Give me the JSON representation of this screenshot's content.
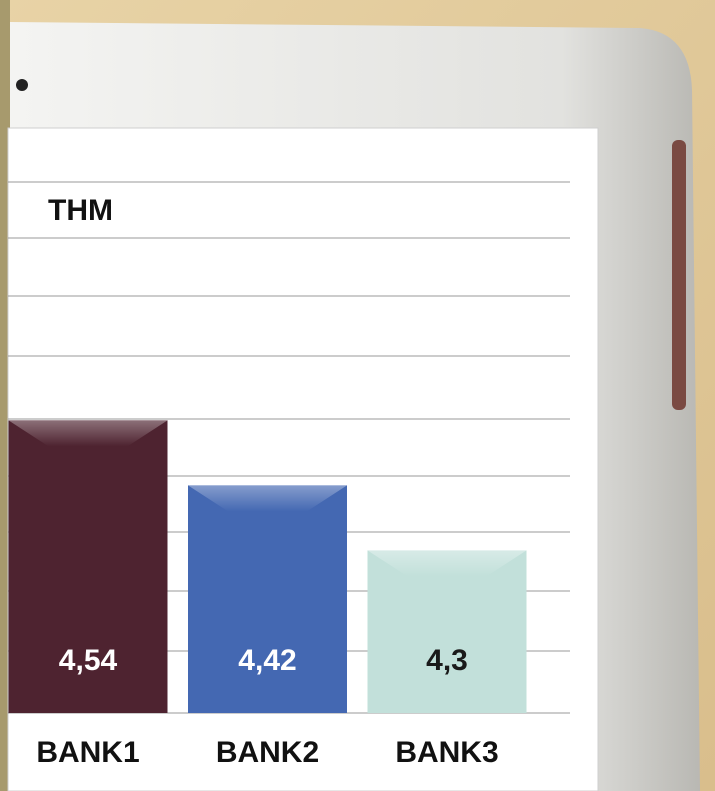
{
  "chart_data": {
    "type": "bar",
    "title": "THM",
    "categories": [
      "BANK1",
      "BANK2",
      "BANK3"
    ],
    "values": [
      4.54,
      4.42,
      4.3
    ],
    "value_labels": [
      "4,54",
      "4,42",
      "4,3"
    ],
    "colors": [
      "#4e2330",
      "#4468b2",
      "#c2e0da"
    ],
    "ylim": [
      4,
      5
    ]
  }
}
